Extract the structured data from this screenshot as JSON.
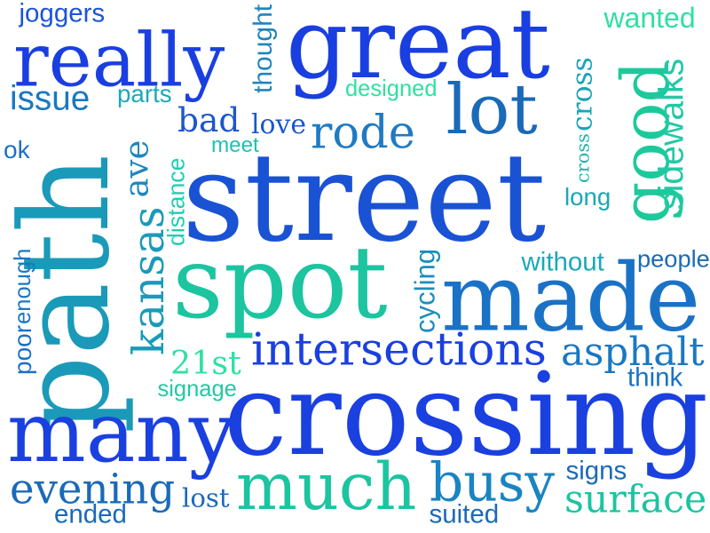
{
  "words": [
    {
      "text": "joggers",
      "color": "#1c54d8",
      "vertical": false
    },
    {
      "text": "great",
      "color": "#1a3fe0",
      "vertical": false
    },
    {
      "text": "wanted",
      "color": "#2fe0a0",
      "vertical": false
    },
    {
      "text": "really",
      "color": "#1a3fe0",
      "vertical": false
    },
    {
      "text": "good",
      "color": "#1cc99a",
      "vertical": true
    },
    {
      "text": "cross",
      "color": "#1aa3b8",
      "vertical": true
    },
    {
      "text": "sidewalks",
      "color": "#22c9a6",
      "vertical": true
    },
    {
      "text": "thought",
      "color": "#1f84c2",
      "vertical": true
    },
    {
      "text": "designed",
      "color": "#2fe0a0",
      "vertical": false
    },
    {
      "text": "parts",
      "color": "#1aa9b8",
      "vertical": false
    },
    {
      "text": "issue",
      "color": "#1a78c2",
      "vertical": false
    },
    {
      "text": "lot",
      "color": "#1a6ab8",
      "vertical": false
    },
    {
      "text": "bad",
      "color": "#1c56cc",
      "vertical": false
    },
    {
      "text": "love",
      "color": "#1c56cc",
      "vertical": false
    },
    {
      "text": "rode",
      "color": "#1f7ac4",
      "vertical": false
    },
    {
      "text": "cross",
      "color": "#1bb6ae",
      "vertical": true
    },
    {
      "text": "meet",
      "color": "#22c0b0",
      "vertical": false
    },
    {
      "text": "ok",
      "color": "#1a70c8",
      "vertical": false
    },
    {
      "text": "path",
      "color": "#1a9ab8",
      "vertical": true
    },
    {
      "text": "ave",
      "color": "#1c86c0",
      "vertical": true
    },
    {
      "text": "street",
      "color": "#1a52d4",
      "vertical": false
    },
    {
      "text": "distance",
      "color": "#22cdb2",
      "vertical": true
    },
    {
      "text": "long",
      "color": "#1aa6b8",
      "vertical": false
    },
    {
      "text": "kansas",
      "color": "#1a9ab8",
      "vertical": true
    },
    {
      "text": "enough",
      "color": "#1a78c2",
      "vertical": true
    },
    {
      "text": "poor",
      "color": "#1a70c8",
      "vertical": true
    },
    {
      "text": "spot",
      "color": "#1cc4a0",
      "vertical": false
    },
    {
      "text": "without",
      "color": "#1aa9b8",
      "vertical": false
    },
    {
      "text": "people",
      "color": "#1a6ab8",
      "vertical": false
    },
    {
      "text": "cycling",
      "color": "#1a8ebc",
      "vertical": true
    },
    {
      "text": "made",
      "color": "#1a72c6",
      "vertical": false
    },
    {
      "text": "intersections",
      "color": "#1a40e0",
      "vertical": false
    },
    {
      "text": "asphalt",
      "color": "#1a78c2",
      "vertical": false
    },
    {
      "text": "21st",
      "color": "#2fe0a0",
      "vertical": false
    },
    {
      "text": "signage",
      "color": "#22c9a6",
      "vertical": false
    },
    {
      "text": "think",
      "color": "#1a72c6",
      "vertical": false
    },
    {
      "text": "many",
      "color": "#1a40e0",
      "vertical": false
    },
    {
      "text": "crossing",
      "color": "#1a40e0",
      "vertical": false
    },
    {
      "text": "evening",
      "color": "#1a6ab8",
      "vertical": false
    },
    {
      "text": "much",
      "color": "#1cc4a0",
      "vertical": false
    },
    {
      "text": "busy",
      "color": "#1a84c2",
      "vertical": false
    },
    {
      "text": "lost",
      "color": "#1a6ab8",
      "vertical": false
    },
    {
      "text": "signs",
      "color": "#1a6ab8",
      "vertical": false
    },
    {
      "text": "surface",
      "color": "#1cc4a0",
      "vertical": false
    },
    {
      "text": "ended",
      "color": "#1a6ab8",
      "vertical": false
    },
    {
      "text": "suited",
      "color": "#1a6ab8",
      "vertical": false
    }
  ]
}
